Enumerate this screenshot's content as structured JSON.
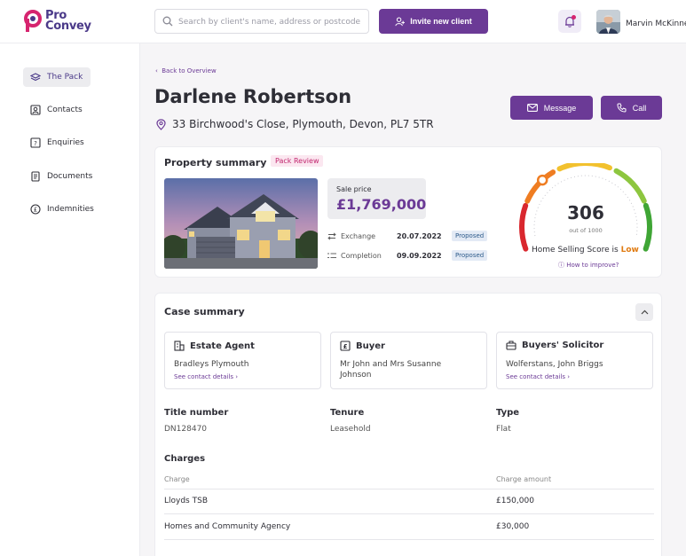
{
  "header": {
    "logo_line1": "Pro",
    "logo_line2": "Convey",
    "search_placeholder": "Search by client's name, address or postcode",
    "invite_label": "Invite new client",
    "user_name": "Marvin McKinne"
  },
  "sidebar": {
    "items": [
      {
        "label": "The Pack",
        "icon": "layers-icon"
      },
      {
        "label": "Contacts",
        "icon": "contact-card-icon"
      },
      {
        "label": "Enquiries",
        "icon": "question-icon"
      },
      {
        "label": "Documents",
        "icon": "document-icon"
      },
      {
        "label": "Indemnities",
        "icon": "pound-icon"
      }
    ]
  },
  "page": {
    "back_label": "Back to Overview",
    "client_name": "Darlene Robertson",
    "address": "33 Birchwood's Close, Plymouth, Devon, PL7 5TR",
    "message_label": "Message",
    "call_label": "Call"
  },
  "property": {
    "title": "Property summary",
    "badge": "Pack Review",
    "sale_price_label": "Sale price",
    "sale_price": "£1,769,000",
    "exchange_label": "Exchange",
    "exchange_date": "20.07.2022",
    "exchange_status": "Proposed",
    "completion_label": "Completion",
    "completion_date": "09.09.2022",
    "completion_status": "Proposed",
    "score": "306",
    "score_max": "out of 1000",
    "score_text": "Home Selling Score is ",
    "score_level": "Low",
    "score_fraction": 0.306,
    "improve_label": "How to improve?"
  },
  "case": {
    "title": "Case summary",
    "parties": [
      {
        "title": "Estate Agent",
        "body": "Bradleys Plymouth",
        "link": "See contact details"
      },
      {
        "title": "Buyer",
        "body": "Mr John and Mrs Susanne Johnson",
        "link": ""
      },
      {
        "title": "Buyers' Solicitor",
        "body": "Wolferstans, John Briggs",
        "link": "See contact details"
      }
    ],
    "title_number_label": "Title number",
    "title_number": "DN128470",
    "tenure_label": "Tenure",
    "tenure": "Leasehold",
    "type_label": "Type",
    "type": "Flat",
    "charges_title": "Charges",
    "charges_headers": [
      "Charge",
      "Charge amount"
    ],
    "charges": [
      {
        "charge": "Lloyds TSB",
        "amount": "£150,000"
      },
      {
        "charge": "Homes and Community Agency",
        "amount": "£30,000"
      }
    ]
  },
  "colors": {
    "brand": "#6b3a96",
    "accent_pink": "#d6246f",
    "low": "#e07b12"
  }
}
